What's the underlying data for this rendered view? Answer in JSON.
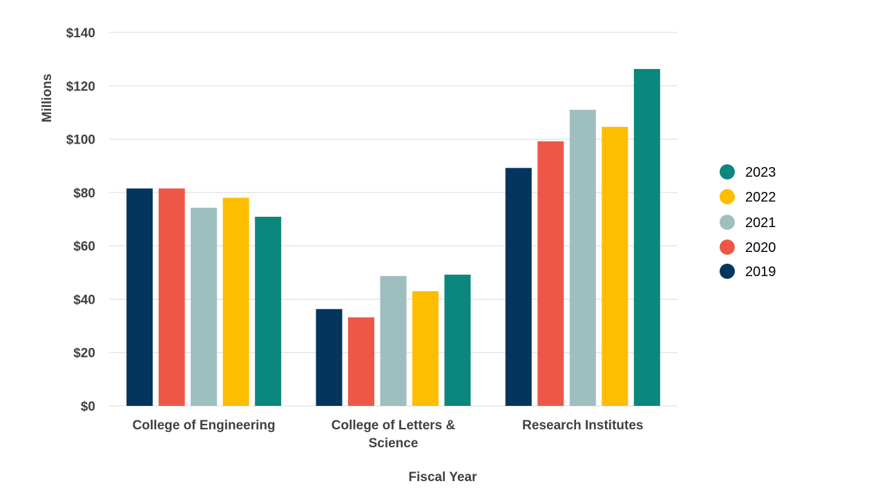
{
  "chart_data": {
    "type": "bar",
    "categories": [
      "College of Engineering",
      "College of Letters & Science",
      "Research Institutes"
    ],
    "category_lines": [
      [
        "College of Engineering"
      ],
      [
        "College of Letters &",
        "Science"
      ],
      [
        "Research Institutes"
      ]
    ],
    "series": [
      {
        "name": "2019",
        "color": "#03355E",
        "values": [
          81.5,
          36.3,
          89.2
        ]
      },
      {
        "name": "2020",
        "color": "#EE5747",
        "values": [
          81.5,
          33.2,
          99.2
        ]
      },
      {
        "name": "2021",
        "color": "#9FBEC0",
        "values": [
          74.3,
          48.7,
          111.0
        ]
      },
      {
        "name": "2022",
        "color": "#FDBE02",
        "values": [
          78.0,
          43.0,
          104.6
        ]
      },
      {
        "name": "2023",
        "color": "#0B877D",
        "values": [
          70.9,
          49.2,
          126.3
        ]
      }
    ],
    "xlabel": "Fiscal Year",
    "ylabel": "Millions",
    "ylim": [
      0,
      140
    ],
    "yticks": [
      0,
      20,
      40,
      60,
      80,
      100,
      120,
      140
    ],
    "ytick_labels": [
      "$0",
      "$20",
      "$40",
      "$60",
      "$80",
      "$100",
      "$120",
      "$140"
    ],
    "grid": true,
    "legend_position": "right",
    "legend_order": [
      "2023",
      "2022",
      "2021",
      "2020",
      "2019"
    ]
  }
}
